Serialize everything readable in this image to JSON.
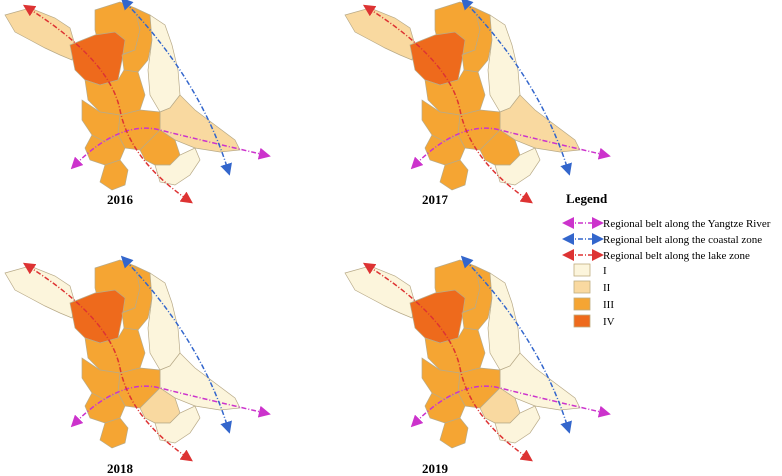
{
  "panels": [
    {
      "year": "2016",
      "classes": [
        "II",
        "III",
        "IV",
        "III",
        "I",
        "III",
        "III",
        "II",
        "III",
        "III",
        "III",
        "III",
        "I"
      ]
    },
    {
      "year": "2017",
      "classes": [
        "II",
        "III",
        "IV",
        "III",
        "I",
        "III",
        "III",
        "II",
        "III",
        "III",
        "III",
        "III",
        "I"
      ]
    },
    {
      "year": "2018",
      "classes": [
        "I",
        "III",
        "IV",
        "III",
        "I",
        "III",
        "III",
        "I",
        "III",
        "III",
        "III",
        "II",
        "I"
      ]
    },
    {
      "year": "2019",
      "classes": [
        "I",
        "III",
        "IV",
        "III",
        "I",
        "III",
        "III",
        "I",
        "III",
        "III",
        "III",
        "II",
        "I"
      ]
    }
  ],
  "legend": {
    "title": "Legend",
    "belts": [
      {
        "label": "Regional belt along the Yangtze River",
        "color": "#cc33cc"
      },
      {
        "label": "Regional belt along the coastal zone",
        "color": "#3366cc"
      },
      {
        "label": "Regional belt along the lake zone",
        "color": "#dd3333"
      }
    ],
    "classes": [
      {
        "label": "I",
        "color": "#fcf5dc"
      },
      {
        "label": "II",
        "color": "#f9d9a0"
      },
      {
        "label": "III",
        "color": "#f5a533"
      },
      {
        "label": "IV",
        "color": "#ee6a1c"
      }
    ]
  }
}
